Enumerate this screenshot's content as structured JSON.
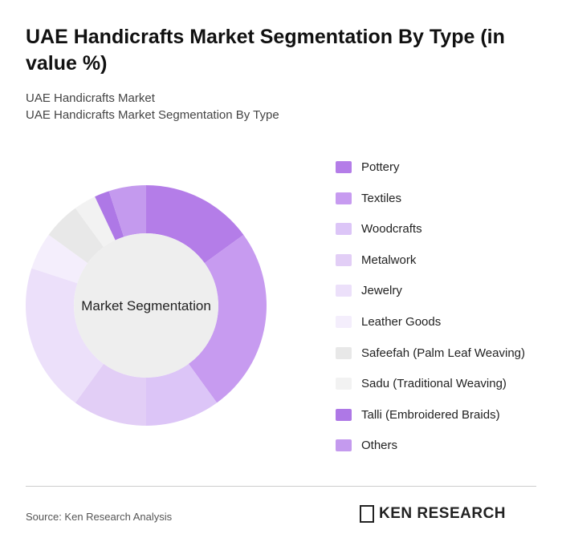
{
  "chart_data": {
    "type": "donut",
    "title": "UAE Handicrafts Market Segmentation By Type (in value %)",
    "subtitle": "UAE Handicrafts Market",
    "subtitle2": "UAE Handicrafts Market Segmentation By Type",
    "center_label": "Market Segmentation",
    "categories": [
      "Pottery",
      "Textiles",
      "Woodcrafts",
      "Metalwork",
      "Jewelry",
      "Leather Goods",
      "Safeefah (Palm Leaf Weaving)",
      "Sadu (Traditional Weaving)",
      "Talli (Embroidered Braids)",
      "Others"
    ],
    "values": [
      15,
      25,
      10,
      10,
      20,
      5,
      5,
      3,
      2,
      5
    ],
    "colors": [
      "#b47de8",
      "#c79bf0",
      "#dcc5f7",
      "#e2cef6",
      "#ece0fa",
      "#f4eefc",
      "#e8e8e8",
      "#f2f2f2",
      "#ae78e6",
      "#c49aee"
    ]
  },
  "source": "Source: Ken Research Analysis",
  "logo": "KEN RESEARCH"
}
